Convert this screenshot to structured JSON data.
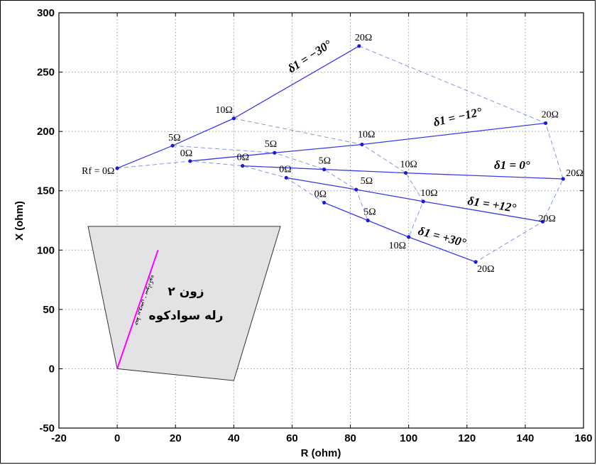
{
  "chart_data": {
    "type": "line",
    "xlabel": "R (ohm)",
    "ylabel": "X (ohm)",
    "xlim": [
      -20,
      160
    ],
    "ylim": [
      -50,
      300
    ],
    "xticks": [
      -20,
      0,
      20,
      40,
      60,
      80,
      100,
      120,
      140,
      160
    ],
    "yticks": [
      -50,
      0,
      50,
      100,
      150,
      200,
      250,
      300
    ],
    "grid": true,
    "series": [
      {
        "name": "δ1 = −30°",
        "points": [
          [
            0,
            169
          ],
          [
            19,
            188
          ],
          [
            40,
            211
          ],
          [
            83,
            272
          ]
        ],
        "point_labels": [
          "Rf = 0Ω",
          "5Ω",
          "10Ω",
          "20Ω"
        ]
      },
      {
        "name": "δ1 = −12°",
        "points": [
          [
            25,
            175
          ],
          [
            54,
            182
          ],
          [
            84,
            189
          ],
          [
            147,
            207
          ]
        ],
        "point_labels": [
          "0Ω",
          "5Ω",
          "10Ω",
          "20Ω"
        ]
      },
      {
        "name": "δ1 = 0°",
        "points": [
          [
            43,
            171
          ],
          [
            71,
            168
          ],
          [
            99,
            165
          ],
          [
            153,
            160
          ]
        ],
        "point_labels": [
          "0Ω",
          "5Ω",
          "10Ω",
          "20Ω"
        ]
      },
      {
        "name": "δ1 = +12°",
        "points": [
          [
            58,
            161
          ],
          [
            82,
            151
          ],
          [
            105,
            141
          ],
          [
            146,
            124
          ]
        ],
        "point_labels": [
          "0Ω",
          "5Ω",
          "10Ω",
          "20Ω"
        ]
      },
      {
        "name": "δ1 = +30°",
        "points": [
          [
            71,
            140
          ],
          [
            86,
            125
          ],
          [
            100,
            111
          ],
          [
            123,
            90
          ]
        ],
        "point_labels": [
          "0Ω",
          "5Ω",
          "10Ω",
          "20Ω"
        ]
      }
    ],
    "resistance_contours": [
      {
        "label": "0Ω",
        "points": [
          [
            0,
            169
          ],
          [
            25,
            175
          ],
          [
            43,
            171
          ],
          [
            58,
            161
          ],
          [
            71,
            140
          ]
        ]
      },
      {
        "label": "5Ω",
        "points": [
          [
            19,
            188
          ],
          [
            54,
            182
          ],
          [
            71,
            168
          ],
          [
            82,
            151
          ],
          [
            86,
            125
          ]
        ]
      },
      {
        "label": "10Ω",
        "points": [
          [
            40,
            211
          ],
          [
            84,
            189
          ],
          [
            99,
            165
          ],
          [
            105,
            141
          ],
          [
            100,
            111
          ]
        ]
      },
      {
        "label": "20Ω",
        "points": [
          [
            83,
            272
          ],
          [
            147,
            207
          ],
          [
            153,
            160
          ],
          [
            146,
            124
          ],
          [
            123,
            90
          ]
        ]
      }
    ],
    "zone": {
      "polygon": [
        [
          -10,
          120
        ],
        [
          56,
          120
        ],
        [
          40,
          -10
        ],
        [
          0,
          0
        ]
      ],
      "text_line1": "زون ۲",
      "text_line2": "رله سوادکوه",
      "line": [
        [
          0,
          0
        ],
        [
          14,
          100
        ]
      ],
      "line_text": "خط پرویس - سوادکوه"
    },
    "colors": {
      "series": "#3a3ae8",
      "contours": "#7d9ae6",
      "zone_fill": "#e3e3e6",
      "zone_line": "#ff00ff",
      "grid": "#9a9a9a"
    }
  }
}
